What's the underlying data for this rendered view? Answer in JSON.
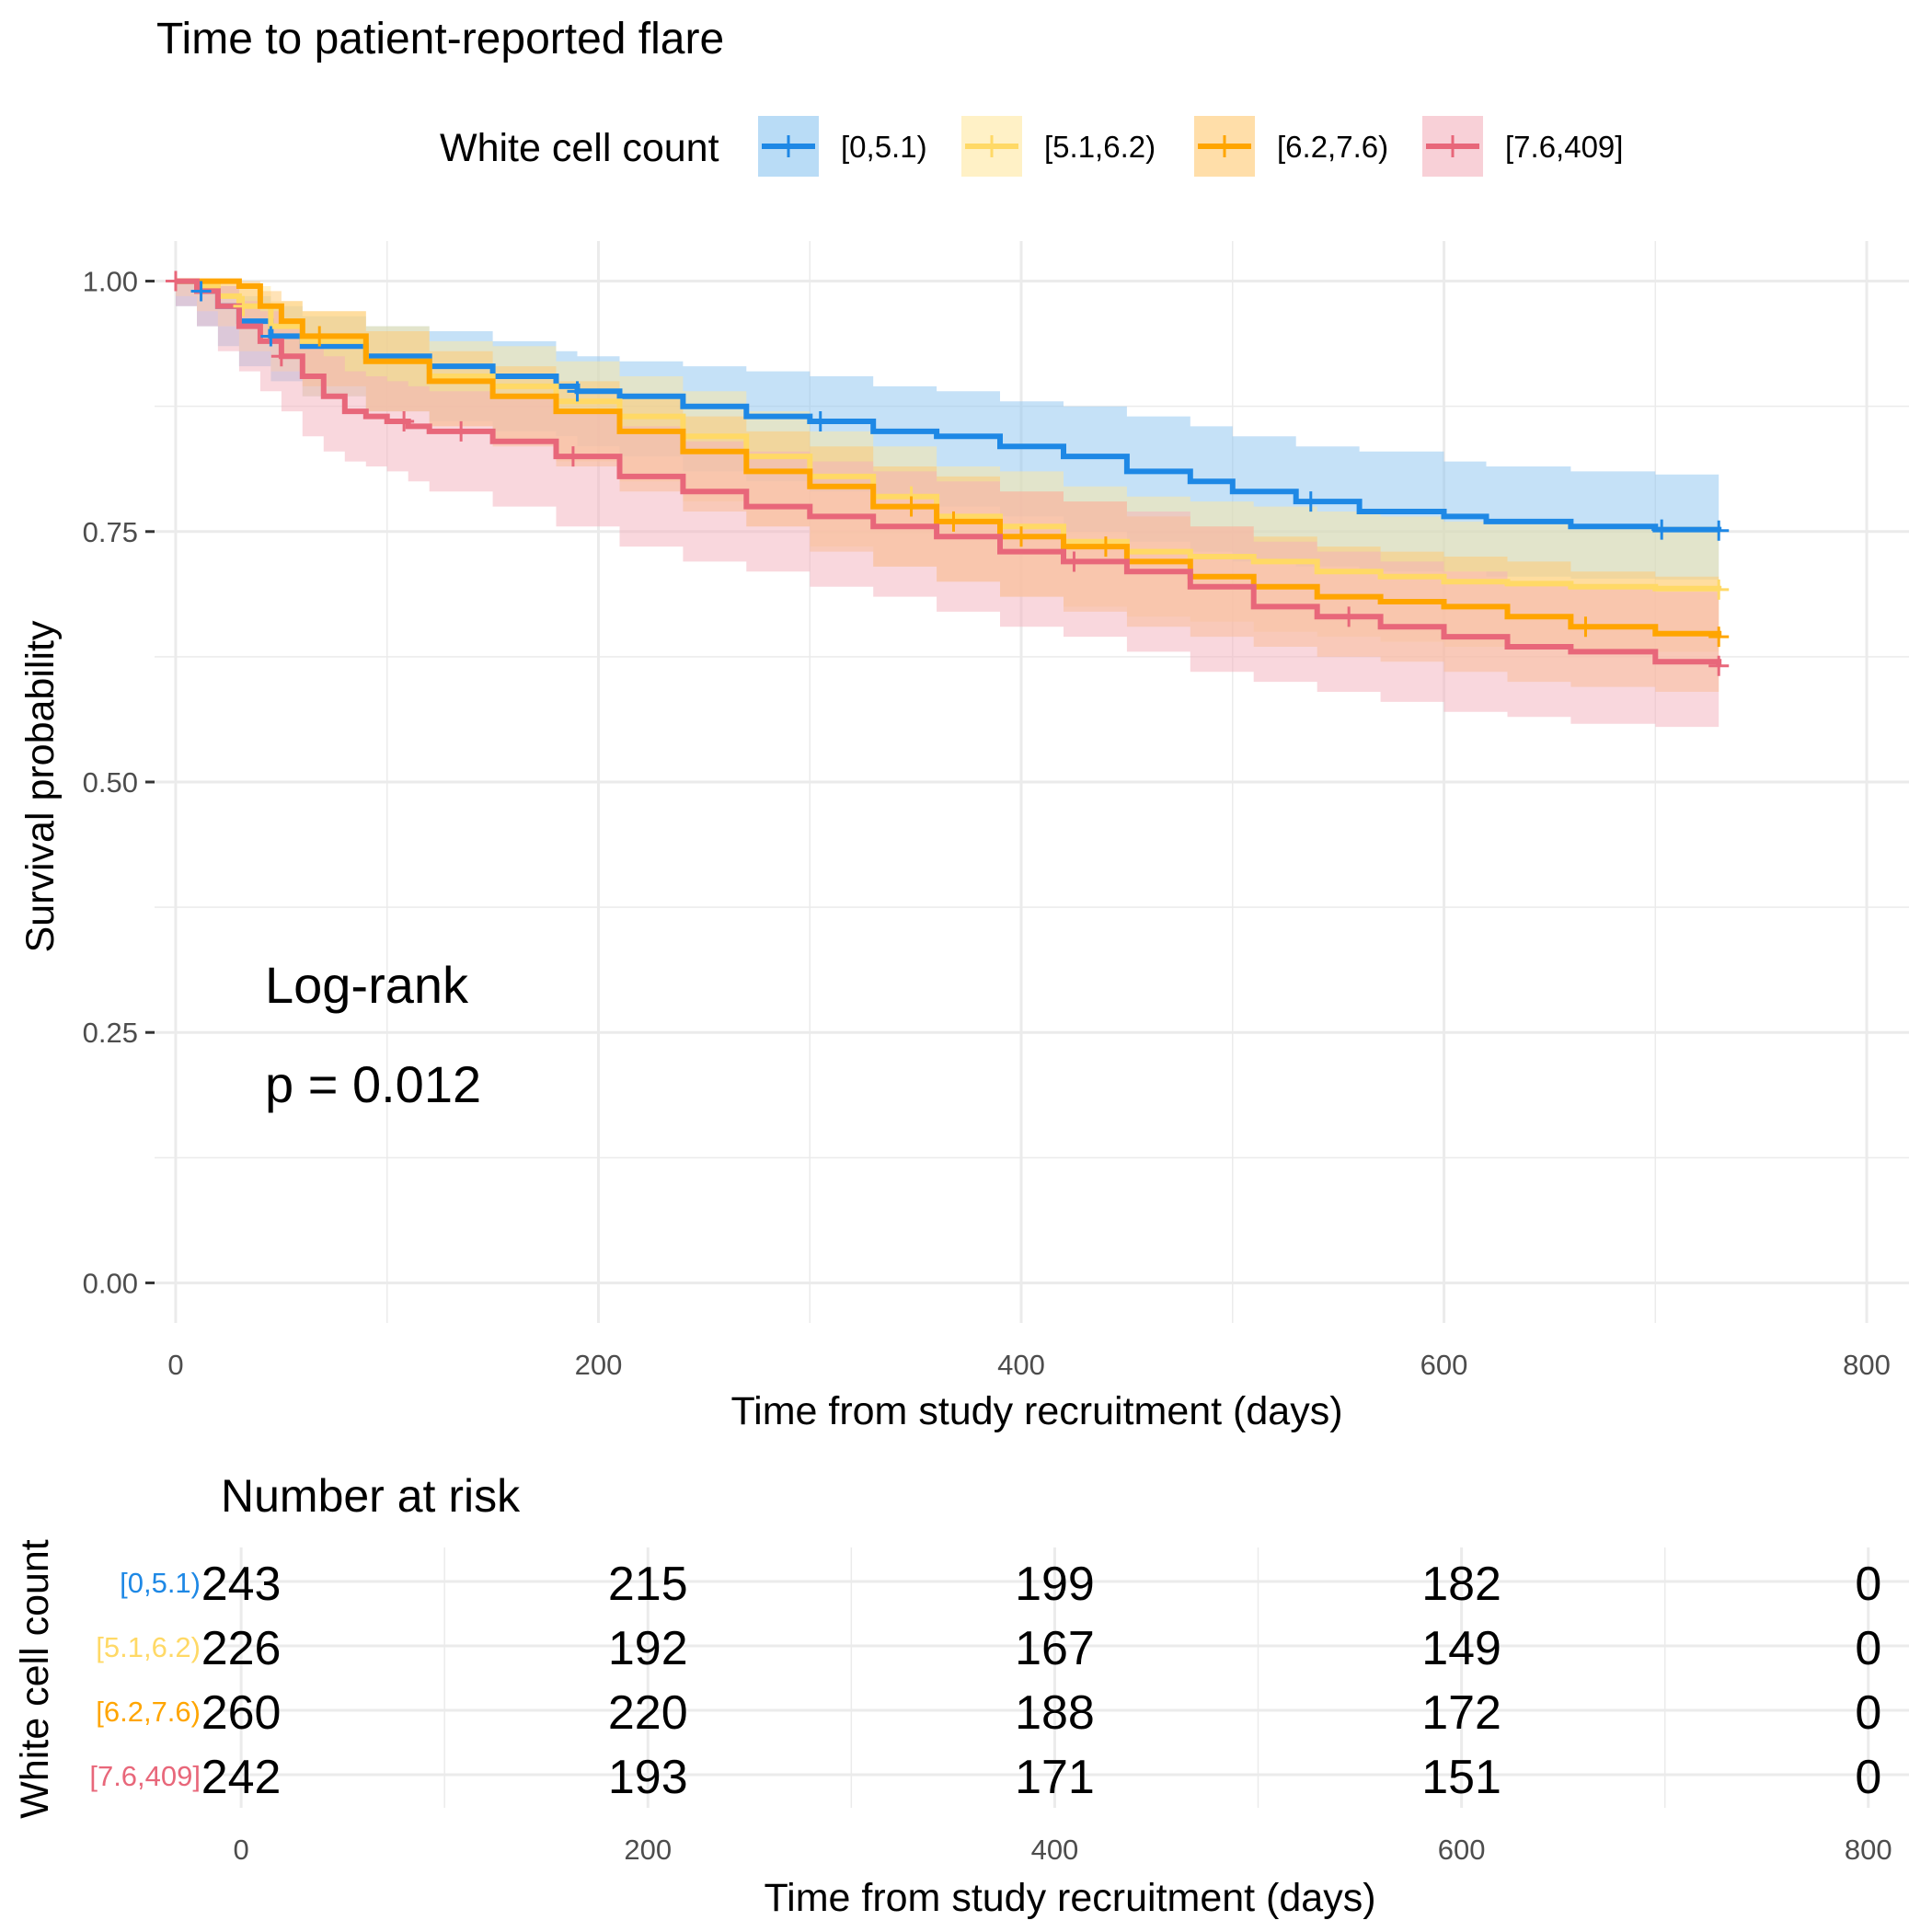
{
  "chart_data": [
    {
      "type": "line",
      "subtype": "kaplan-meier",
      "title": "Time to patient-reported flare",
      "xlabel": "Time from study recruitment (days)",
      "ylabel": "Survival probability",
      "xlim": [
        -10,
        820
      ],
      "ylim": [
        -0.04,
        1.04
      ],
      "x_ticks": [
        0,
        200,
        400,
        600,
        800
      ],
      "x_tick_labels": [
        "0",
        "200",
        "400",
        "600",
        "800"
      ],
      "y_ticks": [
        0,
        0.25,
        0.5,
        0.75,
        1
      ],
      "y_tick_labels": [
        "0.00",
        "0.25",
        "0.50",
        "0.75",
        "1.00"
      ],
      "grid": true,
      "legend": {
        "title": "White cell count",
        "position": "top"
      },
      "annotation": {
        "line1": "Log-rank",
        "line2": "p = 0.012"
      },
      "series": [
        {
          "name": "[0,5.1)",
          "color": "#1E88E5",
          "band_color": "#8BC4F0",
          "x": [
            0,
            10,
            20,
            30,
            45,
            60,
            90,
            120,
            150,
            180,
            190,
            210,
            240,
            270,
            300,
            330,
            360,
            390,
            420,
            450,
            480,
            500,
            530,
            560,
            600,
            620,
            660,
            700,
            730
          ],
          "y": [
            1.0,
            0.99,
            0.975,
            0.96,
            0.945,
            0.935,
            0.925,
            0.915,
            0.905,
            0.895,
            0.89,
            0.885,
            0.875,
            0.865,
            0.86,
            0.85,
            0.845,
            0.835,
            0.825,
            0.81,
            0.8,
            0.79,
            0.78,
            0.77,
            0.765,
            0.76,
            0.755,
            0.752,
            0.751
          ],
          "lower": [
            1.0,
            0.975,
            0.955,
            0.935,
            0.915,
            0.9,
            0.885,
            0.87,
            0.86,
            0.85,
            0.845,
            0.835,
            0.825,
            0.81,
            0.8,
            0.79,
            0.785,
            0.775,
            0.765,
            0.75,
            0.74,
            0.73,
            0.72,
            0.715,
            0.71,
            0.71,
            0.705,
            0.703,
            0.702
          ],
          "upper": [
            1.0,
            1.0,
            0.995,
            0.985,
            0.975,
            0.965,
            0.955,
            0.95,
            0.94,
            0.93,
            0.925,
            0.92,
            0.915,
            0.91,
            0.905,
            0.895,
            0.89,
            0.88,
            0.875,
            0.865,
            0.855,
            0.845,
            0.835,
            0.83,
            0.82,
            0.815,
            0.81,
            0.807,
            0.806
          ],
          "censor_x": [
            12,
            45,
            190,
            305,
            537,
            703,
            730
          ]
        },
        {
          "name": "[5.1,6.2)",
          "color": "#FFD966",
          "band_color": "#FFE8A0",
          "x": [
            0,
            10,
            20,
            30,
            45,
            60,
            90,
            120,
            150,
            180,
            210,
            240,
            270,
            300,
            330,
            360,
            390,
            420,
            450,
            480,
            510,
            540,
            570,
            600,
            630,
            660,
            700,
            730
          ],
          "y": [
            1.0,
            0.995,
            0.985,
            0.975,
            0.955,
            0.94,
            0.92,
            0.905,
            0.895,
            0.88,
            0.865,
            0.845,
            0.825,
            0.805,
            0.785,
            0.765,
            0.755,
            0.74,
            0.73,
            0.725,
            0.72,
            0.71,
            0.705,
            0.7,
            0.698,
            0.695,
            0.693,
            0.692
          ],
          "lower": [
            1.0,
            0.985,
            0.97,
            0.955,
            0.93,
            0.91,
            0.885,
            0.87,
            0.855,
            0.84,
            0.82,
            0.8,
            0.78,
            0.755,
            0.735,
            0.715,
            0.7,
            0.685,
            0.675,
            0.665,
            0.66,
            0.65,
            0.645,
            0.64,
            0.635,
            0.635,
            0.63,
            0.63
          ],
          "upper": [
            1.0,
            1.0,
            1.0,
            0.995,
            0.98,
            0.97,
            0.955,
            0.94,
            0.935,
            0.92,
            0.905,
            0.89,
            0.87,
            0.85,
            0.835,
            0.815,
            0.81,
            0.795,
            0.785,
            0.78,
            0.775,
            0.77,
            0.765,
            0.76,
            0.758,
            0.755,
            0.755,
            0.755
          ],
          "censor_x": [
            32,
            348,
            730
          ]
        },
        {
          "name": "[6.2,7.6)",
          "color": "#FFA500",
          "band_color": "#FFC870",
          "x": [
            0,
            10,
            20,
            30,
            40,
            50,
            60,
            90,
            120,
            150,
            180,
            210,
            240,
            270,
            300,
            330,
            360,
            390,
            420,
            450,
            480,
            510,
            540,
            570,
            600,
            630,
            660,
            700,
            730
          ],
          "y": [
            1.0,
            1.0,
            1.0,
            0.995,
            0.975,
            0.96,
            0.945,
            0.92,
            0.9,
            0.885,
            0.87,
            0.85,
            0.83,
            0.81,
            0.795,
            0.775,
            0.76,
            0.745,
            0.735,
            0.72,
            0.705,
            0.695,
            0.685,
            0.68,
            0.675,
            0.665,
            0.655,
            0.648,
            0.645
          ],
          "lower": [
            1.0,
            1.0,
            0.995,
            0.985,
            0.96,
            0.94,
            0.925,
            0.895,
            0.87,
            0.855,
            0.835,
            0.815,
            0.79,
            0.77,
            0.755,
            0.73,
            0.715,
            0.7,
            0.685,
            0.67,
            0.655,
            0.645,
            0.635,
            0.625,
            0.62,
            0.61,
            0.6,
            0.595,
            0.59
          ],
          "upper": [
            1.0,
            1.0,
            1.0,
            1.0,
            0.99,
            0.98,
            0.97,
            0.95,
            0.93,
            0.915,
            0.9,
            0.885,
            0.865,
            0.85,
            0.835,
            0.815,
            0.805,
            0.79,
            0.78,
            0.765,
            0.755,
            0.745,
            0.735,
            0.73,
            0.725,
            0.72,
            0.71,
            0.705,
            0.7
          ],
          "censor_x": [
            68,
            348,
            368,
            400,
            440,
            667,
            730
          ]
        },
        {
          "name": "[7.6,409]",
          "color": "#E8677A",
          "band_color": "#F4B0BC",
          "x": [
            0,
            10,
            20,
            30,
            40,
            50,
            60,
            70,
            80,
            90,
            100,
            110,
            120,
            150,
            180,
            210,
            240,
            270,
            300,
            330,
            360,
            390,
            420,
            450,
            480,
            510,
            540,
            570,
            600,
            630,
            660,
            700,
            730
          ],
          "y": [
            1.0,
            0.99,
            0.975,
            0.955,
            0.94,
            0.925,
            0.905,
            0.885,
            0.87,
            0.865,
            0.86,
            0.855,
            0.85,
            0.84,
            0.825,
            0.805,
            0.79,
            0.775,
            0.765,
            0.755,
            0.745,
            0.73,
            0.72,
            0.71,
            0.695,
            0.675,
            0.665,
            0.655,
            0.645,
            0.635,
            0.63,
            0.62,
            0.616
          ],
          "lower": [
            1.0,
            0.975,
            0.955,
            0.93,
            0.91,
            0.89,
            0.87,
            0.845,
            0.83,
            0.82,
            0.815,
            0.81,
            0.8,
            0.79,
            0.775,
            0.755,
            0.735,
            0.72,
            0.71,
            0.695,
            0.685,
            0.67,
            0.655,
            0.645,
            0.63,
            0.61,
            0.6,
            0.59,
            0.58,
            0.57,
            0.565,
            0.558,
            0.555
          ],
          "upper": [
            1.0,
            1.0,
            0.995,
            0.98,
            0.97,
            0.96,
            0.945,
            0.925,
            0.91,
            0.905,
            0.9,
            0.895,
            0.89,
            0.885,
            0.87,
            0.855,
            0.84,
            0.83,
            0.82,
            0.81,
            0.8,
            0.79,
            0.78,
            0.77,
            0.755,
            0.74,
            0.73,
            0.72,
            0.71,
            0.7,
            0.695,
            0.69,
            0.685
          ],
          "censor_x": [
            0,
            50,
            108,
            135,
            188,
            425,
            555,
            730
          ]
        }
      ]
    },
    {
      "type": "table",
      "title": "Number at risk",
      "ylabel": "White cell count",
      "xlabel": "Time from study recruitment (days)",
      "xlim": [
        -10,
        820
      ],
      "x_ticks": [
        0,
        200,
        400,
        600,
        800
      ],
      "x_tick_labels": [
        "0",
        "200",
        "400",
        "600",
        "800"
      ],
      "rows": [
        {
          "name": "[0,5.1)",
          "color": "#1E88E5",
          "values": [
            "243",
            "215",
            "199",
            "182",
            "0"
          ]
        },
        {
          "name": "[5.1,6.2)",
          "color": "#FFD966",
          "values": [
            "226",
            "192",
            "167",
            "149",
            "0"
          ]
        },
        {
          "name": "[6.2,7.6)",
          "color": "#FFA500",
          "values": [
            "260",
            "220",
            "188",
            "172",
            "0"
          ]
        },
        {
          "name": "[7.6,409]",
          "color": "#E8677A",
          "values": [
            "242",
            "193",
            "171",
            "151",
            "0"
          ]
        }
      ]
    }
  ]
}
